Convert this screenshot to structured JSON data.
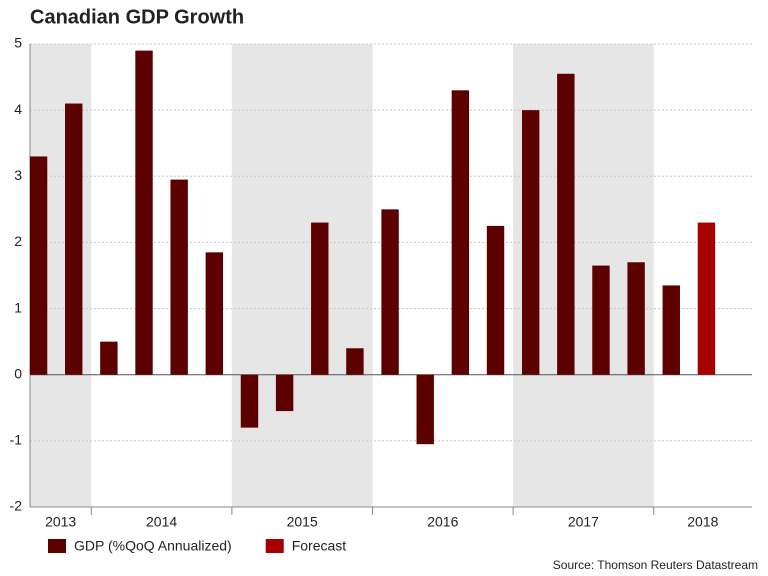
{
  "chart_data": {
    "type": "bar",
    "title": "Canadian GDP Growth",
    "categories": [
      null,
      null,
      null,
      null,
      null,
      null,
      null,
      null,
      null,
      null,
      null,
      null,
      null,
      null,
      null,
      null,
      null,
      null,
      null,
      null
    ],
    "groups": [
      {
        "label": "2013",
        "size": 2
      },
      {
        "label": "2014",
        "size": 4
      },
      {
        "label": "2015",
        "size": 4
      },
      {
        "label": "2016",
        "size": 4
      },
      {
        "label": "2017",
        "size": 4
      },
      {
        "label": "2018",
        "size": 2
      }
    ],
    "series": [
      {
        "name": "GDP (%QoQ Annualized)",
        "color": "#5c0000",
        "values": [
          3.3,
          4.1,
          0.5,
          4.9,
          2.95,
          1.85,
          -0.8,
          -0.55,
          2.3,
          0.4,
          2.5,
          -1.05,
          4.3,
          2.25,
          4.0,
          4.55,
          1.65,
          1.7,
          1.35,
          null
        ]
      },
      {
        "name": "Forecast",
        "color": "#a80000",
        "values": [
          null,
          null,
          null,
          null,
          null,
          null,
          null,
          null,
          null,
          null,
          null,
          null,
          null,
          null,
          null,
          null,
          null,
          null,
          null,
          2.3
        ]
      }
    ],
    "ylim": [
      -2,
      5
    ],
    "yticks": [
      -2,
      -1,
      0,
      1,
      2,
      3,
      4,
      5
    ],
    "grid": true,
    "source": "Source: Thomson Reuters Datastream"
  }
}
